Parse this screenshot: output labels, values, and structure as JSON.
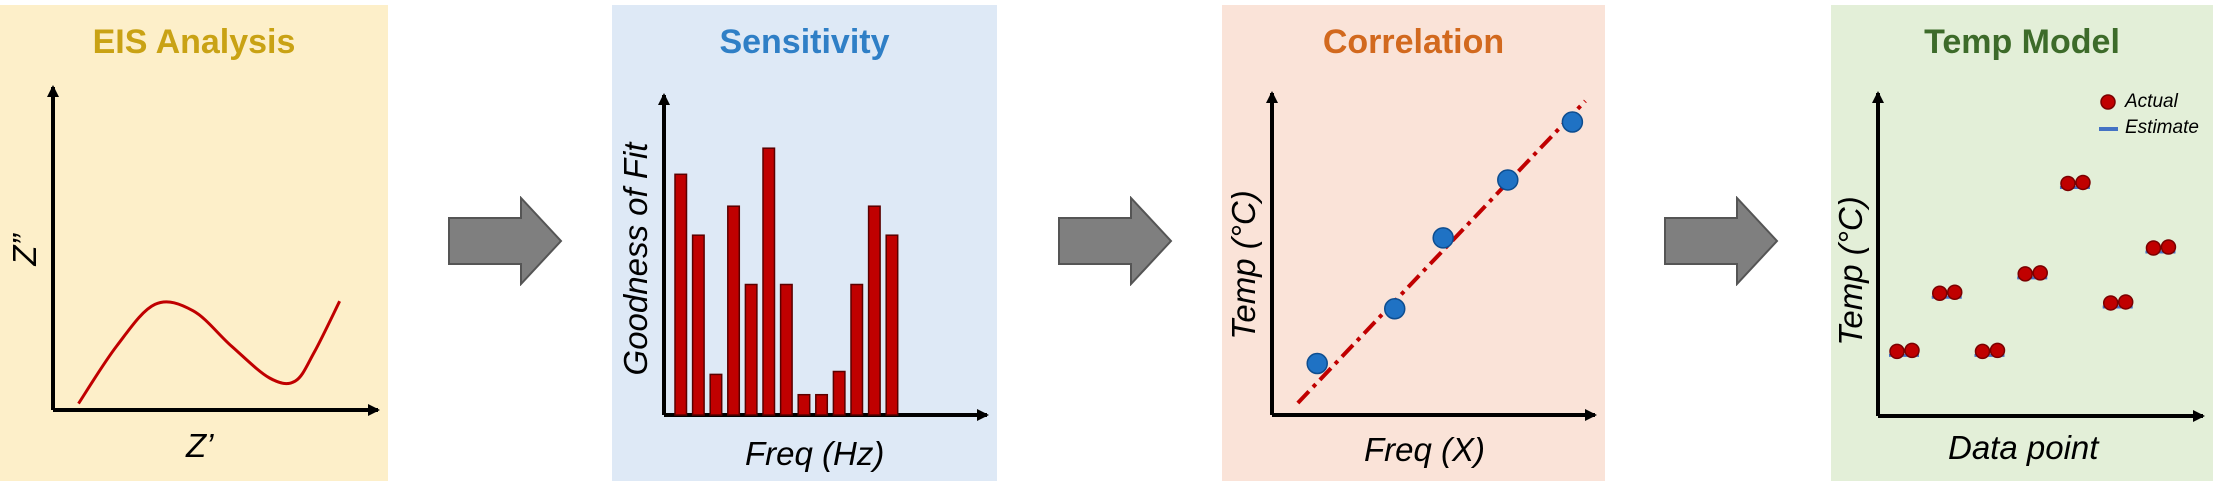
{
  "colors": {
    "panel1_bg": "#fdefc9",
    "panel2_bg": "#dee9f6",
    "panel3_bg": "#fae3d8",
    "panel4_bg": "#e3efd8",
    "title1": "#c9a214",
    "title2": "#2f7fc6",
    "title3": "#d2691e",
    "title4": "#3d6b2a",
    "curve": "#c00000",
    "bar": "#c00000",
    "point_blue": "#1f72c4",
    "point_red": "#c00000",
    "estimate_line": "#4472c4",
    "arrow_fill": "#7f7f7f"
  },
  "panels": [
    {
      "title": "EIS Analysis",
      "xlabel": "Z’",
      "ylabel": "Z”"
    },
    {
      "title": "Sensitivity",
      "xlabel": "Freq (Hz)",
      "ylabel": "Goodness of Fit"
    },
    {
      "title": "Correlation",
      "xlabel": "Freq (X)",
      "ylabel": "Temp (°C)"
    },
    {
      "title": "Temp Model",
      "xlabel": "Data point",
      "ylabel": "Temp (°C)",
      "legend": {
        "actual": "Actual",
        "estimate": "Estimate"
      }
    }
  ],
  "arrows": [
    "arrow-right-icon",
    "arrow-right-icon",
    "arrow-right-icon"
  ],
  "chart_data": [
    {
      "type": "line",
      "title": "EIS Analysis",
      "xlabel": "Z’",
      "ylabel": "Z”",
      "description_points": {
        "x": [
          0.08,
          0.2,
          0.32,
          0.44,
          0.56,
          0.68,
          0.76,
          0.82,
          0.9
        ],
        "y": [
          0.02,
          0.2,
          0.33,
          0.31,
          0.2,
          0.1,
          0.09,
          0.18,
          0.34
        ]
      }
    },
    {
      "type": "bar",
      "title": "Sensitivity",
      "xlabel": "Freq (Hz)",
      "ylabel": "Goodness of Fit",
      "values": [
        0.83,
        0.62,
        0.14,
        0.72,
        0.45,
        0.92,
        0.45,
        0.07,
        0.07,
        0.15,
        0.45,
        0.72,
        0.62
      ],
      "ylim": [
        0,
        1
      ]
    },
    {
      "type": "scatter",
      "title": "Correlation",
      "xlabel": "Freq (X)",
      "ylabel": "Temp (°C)",
      "x": [
        0.14,
        0.38,
        0.53,
        0.73,
        0.93
      ],
      "y": [
        0.16,
        0.33,
        0.55,
        0.73,
        0.91
      ],
      "trendline": {
        "x": [
          0.08,
          0.97
        ],
        "y": [
          0.0,
          1.0
        ],
        "style": "dash-dot"
      }
    },
    {
      "type": "scatter",
      "title": "Temp Model",
      "xlabel": "Data point",
      "ylabel": "Temp (°C)",
      "series": [
        {
          "name": "Actual",
          "x": [
            1,
            2,
            3,
            4,
            5,
            6,
            7
          ],
          "y": [
            0.2,
            0.38,
            0.2,
            0.44,
            0.72,
            0.35,
            0.52
          ]
        },
        {
          "name": "Estimate",
          "x": [
            1,
            2,
            3,
            4,
            5,
            6,
            7
          ],
          "y": [
            0.2,
            0.38,
            0.2,
            0.44,
            0.72,
            0.35,
            0.52
          ]
        }
      ]
    }
  ]
}
